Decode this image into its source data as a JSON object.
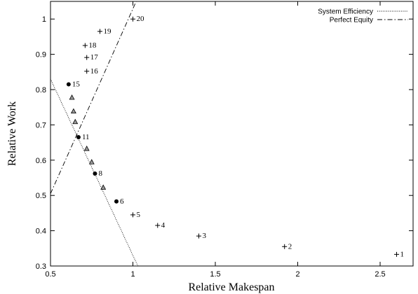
{
  "chart_data": {
    "type": "scatter",
    "title": "",
    "xlabel": "Relative Makespan",
    "ylabel": "Relative Work",
    "xlim": [
      0.5,
      2.7
    ],
    "ylim": [
      0.3,
      1.05
    ],
    "xticks": [
      0.5,
      1,
      1.5,
      2,
      2.5
    ],
    "yticks": [
      0.3,
      0.4,
      0.5,
      0.6,
      0.7,
      0.8,
      0.9,
      1
    ],
    "xtick_labels": [
      "0.5",
      "1",
      "1.5",
      "2",
      "2.5"
    ],
    "ytick_labels": [
      "0.3",
      "0.4",
      "0.5",
      "0.6",
      "0.7",
      "0.8",
      "0.9",
      "1"
    ],
    "grid": false,
    "legend_position": "top-right",
    "lines": [
      {
        "name": "System Efficiency",
        "style": "dotted",
        "x": [
          0.5,
          1.03
        ],
        "y": [
          0.83,
          0.3
        ]
      },
      {
        "name": "Perfect Equity",
        "style": "dashdot",
        "x": [
          0.5,
          1.02
        ],
        "y": [
          0.505,
          1.05
        ]
      }
    ],
    "series": [
      {
        "marker": "plus",
        "points": [
          {
            "label": "1",
            "x": 2.6,
            "y": 0.333
          },
          {
            "label": "2",
            "x": 1.92,
            "y": 0.355
          },
          {
            "label": "3",
            "x": 1.4,
            "y": 0.385
          },
          {
            "label": "4",
            "x": 1.15,
            "y": 0.415
          },
          {
            "label": "5",
            "x": 1.0,
            "y": 0.445
          },
          {
            "label": "16",
            "x": 0.72,
            "y": 0.852
          },
          {
            "label": "17",
            "x": 0.72,
            "y": 0.891
          },
          {
            "label": "18",
            "x": 0.71,
            "y": 0.925
          },
          {
            "label": "19",
            "x": 0.8,
            "y": 0.965
          },
          {
            "label": "20",
            "x": 1.0,
            "y": 1.0
          }
        ]
      },
      {
        "marker": "circle",
        "points": [
          {
            "label": "6",
            "x": 0.9,
            "y": 0.483
          },
          {
            "label": "8",
            "x": 0.77,
            "y": 0.562
          },
          {
            "label": "11",
            "x": 0.67,
            "y": 0.665
          },
          {
            "label": "15",
            "x": 0.61,
            "y": 0.815
          }
        ]
      },
      {
        "marker": "triangle",
        "points": [
          {
            "label": "",
            "x": 0.82,
            "y": 0.522
          },
          {
            "label": "",
            "x": 0.75,
            "y": 0.594
          },
          {
            "label": "",
            "x": 0.72,
            "y": 0.632
          },
          {
            "label": "",
            "x": 0.65,
            "y": 0.708
          },
          {
            "label": "",
            "x": 0.64,
            "y": 0.738
          },
          {
            "label": "",
            "x": 0.63,
            "y": 0.777
          }
        ]
      }
    ]
  }
}
